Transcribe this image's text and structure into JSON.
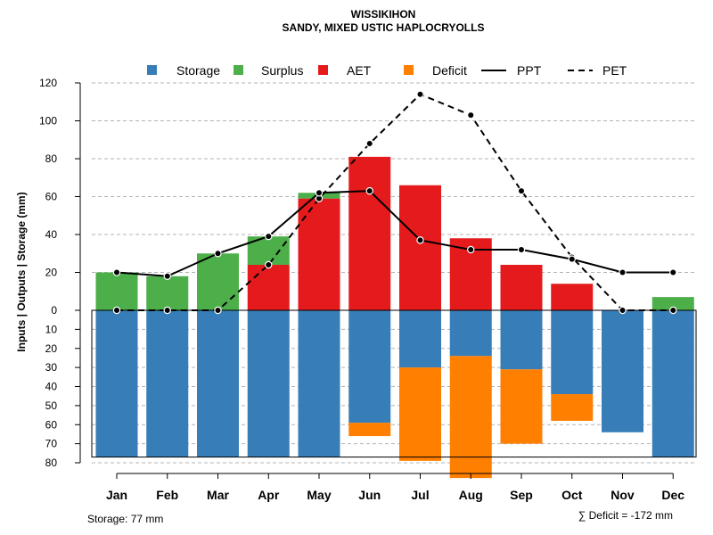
{
  "chart_data": {
    "type": "bar",
    "title": "WISSIKIHON",
    "subtitle": "SANDY, MIXED USTIC HAPLOCRYOLLS",
    "ylabel": "Inputs | Outputs | Storage     (mm)",
    "categories": [
      "Jan",
      "Feb",
      "Mar",
      "Apr",
      "May",
      "Jun",
      "Jul",
      "Aug",
      "Sep",
      "Oct",
      "Nov",
      "Dec"
    ],
    "ylim_top": [
      0,
      120
    ],
    "ylim_bottom": [
      0,
      80
    ],
    "ticks_top": [
      0,
      20,
      40,
      60,
      80,
      100,
      120
    ],
    "ticks_bottom": [
      10,
      20,
      30,
      40,
      50,
      60,
      70,
      80
    ],
    "storage_capacity": 77,
    "series": [
      {
        "name": "Storage",
        "color": "#377EB8",
        "values": [
          77,
          77,
          77,
          77,
          77,
          59,
          30,
          24,
          31,
          44,
          64,
          77
        ]
      },
      {
        "name": "Surplus",
        "color": "#4DAF4A",
        "values": [
          20,
          18,
          30,
          15,
          3,
          0,
          0,
          0,
          0,
          0,
          0,
          7
        ]
      },
      {
        "name": "AET",
        "color": "#E41A1C",
        "values": [
          0,
          0,
          0,
          24,
          59,
          81,
          66,
          38,
          24,
          14,
          0,
          0
        ]
      },
      {
        "name": "Deficit",
        "color": "#FF7F00",
        "values": [
          0,
          0,
          0,
          0,
          0,
          7,
          49,
          64,
          39,
          14,
          0,
          0
        ]
      },
      {
        "name": "PPT",
        "style": "solid",
        "values": [
          20,
          18,
          30,
          39,
          62,
          63,
          37,
          32,
          32,
          27,
          20,
          20
        ]
      },
      {
        "name": "PET",
        "style": "dashed",
        "values": [
          0,
          0,
          0,
          24,
          59,
          88,
          114,
          103,
          63,
          28,
          0,
          0
        ]
      }
    ],
    "storage_note": "Storage: 77 mm",
    "deficit_note": "∑ Deficit = -172 mm"
  }
}
